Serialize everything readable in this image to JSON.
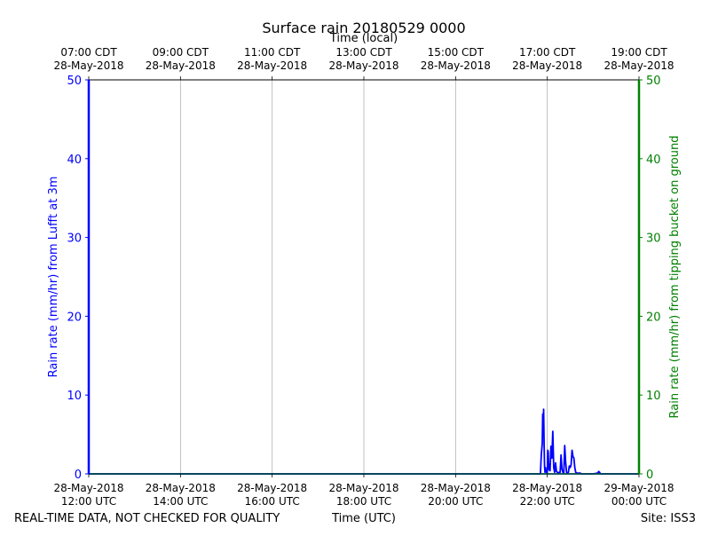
{
  "chart_data": {
    "type": "line",
    "title": "Surface rain 20180529 0000",
    "top_axis_label": "Time (local)",
    "top_ticks": [
      {
        "line1": "07:00 CDT",
        "line2": "28-May-2018"
      },
      {
        "line1": "09:00 CDT",
        "line2": "28-May-2018"
      },
      {
        "line1": "11:00 CDT",
        "line2": "28-May-2018"
      },
      {
        "line1": "13:00 CDT",
        "line2": "28-May-2018"
      },
      {
        "line1": "15:00 CDT",
        "line2": "28-May-2018"
      },
      {
        "line1": "17:00 CDT",
        "line2": "28-May-2018"
      },
      {
        "line1": "19:00 CDT",
        "line2": "28-May-2018"
      }
    ],
    "bottom_ticks": [
      {
        "line1": "28-May-2018",
        "line2": "12:00 UTC"
      },
      {
        "line1": "28-May-2018",
        "line2": "14:00 UTC"
      },
      {
        "line1": "28-May-2018",
        "line2": "16:00 UTC"
      },
      {
        "line1": "28-May-2018",
        "line2": "18:00 UTC"
      },
      {
        "line1": "28-May-2018",
        "line2": "20:00 UTC"
      },
      {
        "line1": "28-May-2018",
        "line2": "22:00 UTC"
      },
      {
        "line1": "29-May-2018",
        "line2": "00:00 UTC"
      }
    ],
    "xlabel": "Time (UTC)",
    "xlim_hours_utc": [
      12,
      24
    ],
    "ylabel_left": "Rain rate (mm/hr) from Lufft at 3m",
    "ylabel_right": "Rain rate (mm/hr) from tipping bucket on ground",
    "ylim": [
      0,
      50
    ],
    "yticks": [
      0,
      10,
      20,
      30,
      40,
      50
    ],
    "grid": "vertical",
    "colors": {
      "left_axis": "#0000ff",
      "right_axis": "#008000",
      "bucket_series": "#00aaaa"
    },
    "series": [
      {
        "axis": "left",
        "x_hours_utc": [
          12.0,
          21.85,
          21.87,
          21.89,
          21.9,
          21.91,
          21.92,
          21.93,
          21.94,
          21.95,
          21.96,
          21.97,
          21.98,
          21.99,
          22.0,
          22.01,
          22.02,
          22.03,
          22.04,
          22.05,
          22.06,
          22.08,
          22.1,
          22.12,
          22.14,
          22.16,
          22.18,
          22.2,
          22.22,
          22.24,
          22.26,
          22.28,
          22.3,
          22.32,
          22.34,
          22.36,
          22.38,
          22.4,
          22.42,
          22.44,
          22.46,
          22.48,
          22.5,
          22.52,
          22.54,
          22.56,
          22.58,
          22.6,
          22.62,
          22.64,
          22.66,
          22.68,
          22.7,
          22.72,
          22.74,
          22.76,
          22.78,
          22.8,
          22.9,
          23.0,
          23.1,
          23.12,
          23.14,
          23.16,
          23.3,
          24.0
        ],
        "y_mm_per_hr": [
          0,
          0,
          2.5,
          3.8,
          7.6,
          5.0,
          8.2,
          4.0,
          1.0,
          0.2,
          0.8,
          0.3,
          0.5,
          0.1,
          0.2,
          3.0,
          2.8,
          1.0,
          0.5,
          1.2,
          0.4,
          3.5,
          2.0,
          5.4,
          0.8,
          0.2,
          1.4,
          0.3,
          0.2,
          0.1,
          0.2,
          0.2,
          2.4,
          0.6,
          0.2,
          0.1,
          3.6,
          1.5,
          0.2,
          0.1,
          0.2,
          1.0,
          0.8,
          1.2,
          3.0,
          2.2,
          2.0,
          0.8,
          0.2,
          0.1,
          0.1,
          0.1,
          0.1,
          0.1,
          0.0,
          0.0,
          0.0,
          0.0,
          0.0,
          0.0,
          0.1,
          0.3,
          0.2,
          0.0,
          0.0,
          0
        ]
      },
      {
        "axis": "right",
        "x_hours_utc": [
          12,
          24
        ],
        "y_mm_per_hr": [
          0,
          0
        ]
      }
    ],
    "footer_left": "REAL-TIME DATA, NOT CHECKED FOR QUALITY",
    "footer_right": "Site: ISS3"
  }
}
